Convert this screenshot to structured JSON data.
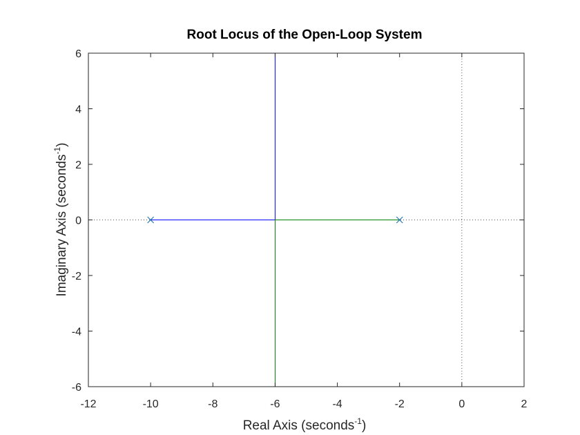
{
  "chart_data": {
    "type": "line",
    "title": "Root Locus of the Open-Loop System",
    "xlabel": {
      "prefix": "Real Axis (seconds",
      "sup": "-1",
      "suffix": ")"
    },
    "ylabel": {
      "prefix": "Imaginary Axis (seconds",
      "sup": "-1",
      "suffix": ")"
    },
    "xlim": [
      -12,
      2
    ],
    "ylim": [
      -6,
      6
    ],
    "xticks": [
      -12,
      -10,
      -8,
      -6,
      -4,
      -2,
      0,
      2
    ],
    "yticks": [
      -6,
      -4,
      -2,
      0,
      2,
      4,
      6
    ],
    "xtick_labels": [
      "-12",
      "-10",
      "-8",
      "-6",
      "-4",
      "-2",
      "0",
      "2"
    ],
    "ytick_labels": [
      "-6",
      "-4",
      "-2",
      "0",
      "2",
      "4",
      "6"
    ],
    "grid": false,
    "series": [
      {
        "color": "#0000ff",
        "x": [
          -10,
          -6,
          -6
        ],
        "y": [
          0,
          0,
          6
        ]
      },
      {
        "color": "#008000",
        "x": [
          -2,
          -6,
          -6
        ],
        "y": [
          0,
          0,
          -6
        ]
      }
    ],
    "poles": {
      "x": [
        -10,
        -2
      ],
      "y": [
        0,
        0
      ],
      "marker": "x",
      "color": "#1f77b4"
    },
    "reference_lines": {
      "real_axis_y": 0,
      "imag_axis_x": 0,
      "style": "dotted"
    }
  }
}
